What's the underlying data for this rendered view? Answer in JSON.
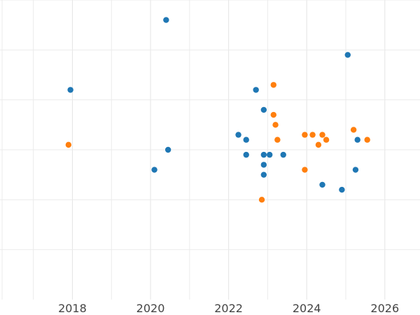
{
  "chart_data": {
    "type": "scatter",
    "title": "",
    "xlabel": "",
    "ylabel": "",
    "xlim": [
      2016.2,
      2026.9
    ],
    "ylim": [
      0,
      6
    ],
    "x_ticks": [
      2018,
      2020,
      2022,
      2024,
      2026
    ],
    "x_tick_labels": [
      "2018",
      "2020",
      "2022",
      "2024",
      "2026"
    ],
    "y_ticks": [
      1,
      2,
      3,
      4,
      5,
      6
    ],
    "y_tick_labels": [],
    "grid": true,
    "legend": "none",
    "series": [
      {
        "color": "#1f77b4",
        "points": [
          {
            "x": 2017.95,
            "y": 4.2
          },
          {
            "x": 2020.4,
            "y": 5.6
          },
          {
            "x": 2020.1,
            "y": 2.6
          },
          {
            "x": 2020.45,
            "y": 3.0
          },
          {
            "x": 2022.25,
            "y": 3.3
          },
          {
            "x": 2022.45,
            "y": 3.2
          },
          {
            "x": 2022.45,
            "y": 2.9
          },
          {
            "x": 2022.7,
            "y": 4.2
          },
          {
            "x": 2022.9,
            "y": 3.8
          },
          {
            "x": 2022.9,
            "y": 2.9
          },
          {
            "x": 2022.9,
            "y": 2.7
          },
          {
            "x": 2022.9,
            "y": 2.5
          },
          {
            "x": 2023.05,
            "y": 2.9
          },
          {
            "x": 2023.4,
            "y": 2.9
          },
          {
            "x": 2024.4,
            "y": 2.3
          },
          {
            "x": 2024.9,
            "y": 2.2
          },
          {
            "x": 2025.05,
            "y": 4.9
          },
          {
            "x": 2025.25,
            "y": 2.6
          },
          {
            "x": 2025.3,
            "y": 3.2
          }
        ]
      },
      {
        "color": "#ff7f0e",
        "points": [
          {
            "x": 2017.9,
            "y": 3.1
          },
          {
            "x": 2022.85,
            "y": 2.0
          },
          {
            "x": 2023.15,
            "y": 4.3
          },
          {
            "x": 2023.15,
            "y": 3.7
          },
          {
            "x": 2023.2,
            "y": 3.5
          },
          {
            "x": 2023.25,
            "y": 3.2
          },
          {
            "x": 2023.95,
            "y": 2.6
          },
          {
            "x": 2023.95,
            "y": 3.3
          },
          {
            "x": 2024.15,
            "y": 3.3
          },
          {
            "x": 2024.3,
            "y": 3.1
          },
          {
            "x": 2024.4,
            "y": 3.3
          },
          {
            "x": 2024.5,
            "y": 3.2
          },
          {
            "x": 2025.2,
            "y": 3.4
          },
          {
            "x": 2025.55,
            "y": 3.2
          }
        ]
      }
    ]
  }
}
